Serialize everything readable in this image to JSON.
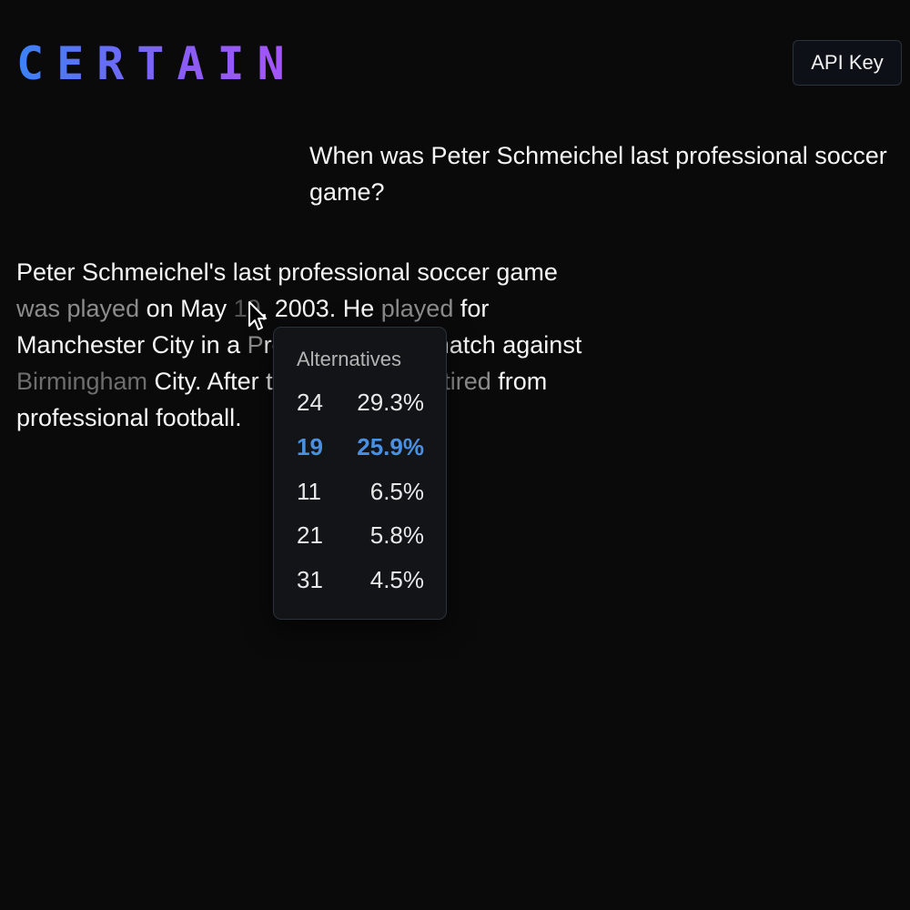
{
  "header": {
    "logo_text": "CERTAIN",
    "api_key_label": "API Key"
  },
  "question": "When was Peter Schmeichel last professional soccer game?",
  "answer": {
    "lines": [
      [
        {
          "text": "Peter Schmeichel's last professional soccer game",
          "style": "normal"
        }
      ],
      [
        {
          "text": "was played",
          "style": "dim1"
        },
        {
          "text": " on May ",
          "style": "normal"
        },
        {
          "text": "19",
          "style": "hover"
        },
        {
          "text": ", 2003. He ",
          "style": "normal"
        },
        {
          "text": "played",
          "style": "dim1"
        },
        {
          "text": " for",
          "style": "normal"
        }
      ],
      [
        {
          "text": "Manchester City in a ",
          "style": "normal"
        },
        {
          "text": "P",
          "style": "dim1"
        },
        {
          "text": "remier League",
          "style": "hidden"
        },
        {
          "text": " match against",
          "style": "normal"
        }
      ],
      [
        {
          "text": "Birmingham",
          "style": "dim2"
        },
        {
          "text": " City. Afte",
          "style": "normal"
        },
        {
          "text": "r the match, h",
          "style": "hidden"
        },
        {
          "text": "e retired",
          "style": "dim1"
        },
        {
          "text": " from",
          "style": "normal"
        }
      ],
      [
        {
          "text": "professional football.",
          "style": "normal"
        }
      ]
    ]
  },
  "popup": {
    "title": "Alternatives",
    "selected_token": "19",
    "alternatives": [
      {
        "token": "24",
        "prob": "29.3%"
      },
      {
        "token": "19",
        "prob": "25.9%"
      },
      {
        "token": "11",
        "prob": "6.5%"
      },
      {
        "token": "21",
        "prob": "5.8%"
      },
      {
        "token": "31",
        "prob": "4.5%"
      }
    ]
  },
  "colors": {
    "background": "#0a0a0a",
    "accent_blue": "#4a90e2",
    "logo_gradient_start": "#3b82f6",
    "logo_gradient_end": "#a855f7"
  },
  "icons": {
    "cursor": "mouse-pointer-icon"
  }
}
